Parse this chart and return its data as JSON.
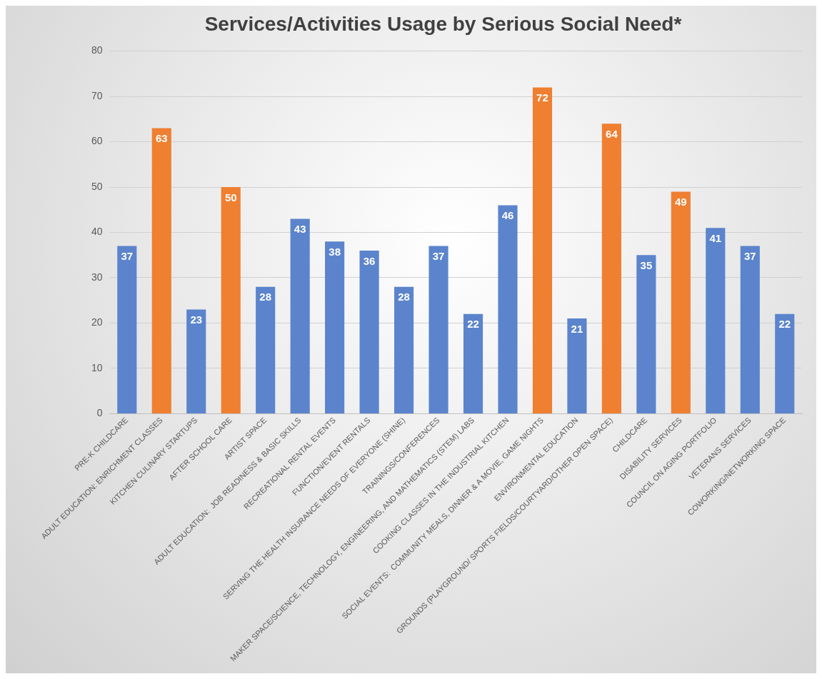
{
  "chart_data": {
    "type": "bar",
    "title": "Services/Activities Usage by Serious Social Need*",
    "categories": [
      "PRE-K CHILDCARE",
      "ADULT EDUCATION: ENRICHMENT CLASSES",
      "KITCHEN CULINARY STARTUPS",
      "AFTER SCHOOL CARE",
      "ARTIST SPACE",
      "ADULT EDUCATION:  JOB READINESS & BASIC SKILLS",
      "RECREATIONAL RENTAL EVENTS",
      "FUNCTION/EVENT RENTALS",
      "SERVING THE HEALTH INSURANCE NEEDS OF EVERYONE (SHINE)",
      "TRAININGS/CONFERENCES",
      "MAKER SPACE/SCIENCE, TECHNOLOGY, ENGINEERING, AND MATHEMATICS (STEM) LABS",
      "COOKING CLASSES IN THE INDUSTRIAL KITCHEN",
      "SOCIAL EVENTS:  COMMUNITY MEALS, DINNER & A MOVIE, GAME NIGHTS",
      "ENVIRONMENTAL EDUCATION",
      "GROUNDS (PLAYGROUND/ SPORTS FIELDS/COURTYARD/OTHER OPEN SPACE)",
      "CHILDCARE",
      "DISABILITY SERVICES",
      "COUNCIL ON AGING PORTFOLIO",
      "VETERANS SERVICES",
      "COWORKING/NETWORKING SPACE"
    ],
    "values": [
      37,
      63,
      23,
      50,
      28,
      43,
      38,
      36,
      28,
      37,
      22,
      46,
      72,
      21,
      64,
      35,
      49,
      41,
      37,
      22
    ],
    "colors": [
      "#5b84cc",
      "#ef7f31",
      "#5b84cc",
      "#ef7f31",
      "#5b84cc",
      "#5b84cc",
      "#5b84cc",
      "#5b84cc",
      "#5b84cc",
      "#5b84cc",
      "#5b84cc",
      "#5b84cc",
      "#ef7f31",
      "#5b84cc",
      "#ef7f31",
      "#5b84cc",
      "#ef7f31",
      "#5b84cc",
      "#5b84cc",
      "#5b84cc"
    ],
    "ylim": [
      0,
      80
    ],
    "yticks": [
      0,
      10,
      20,
      30,
      40,
      50,
      60,
      70,
      80
    ],
    "grid": "y",
    "data_labels": true,
    "legend": false
  }
}
